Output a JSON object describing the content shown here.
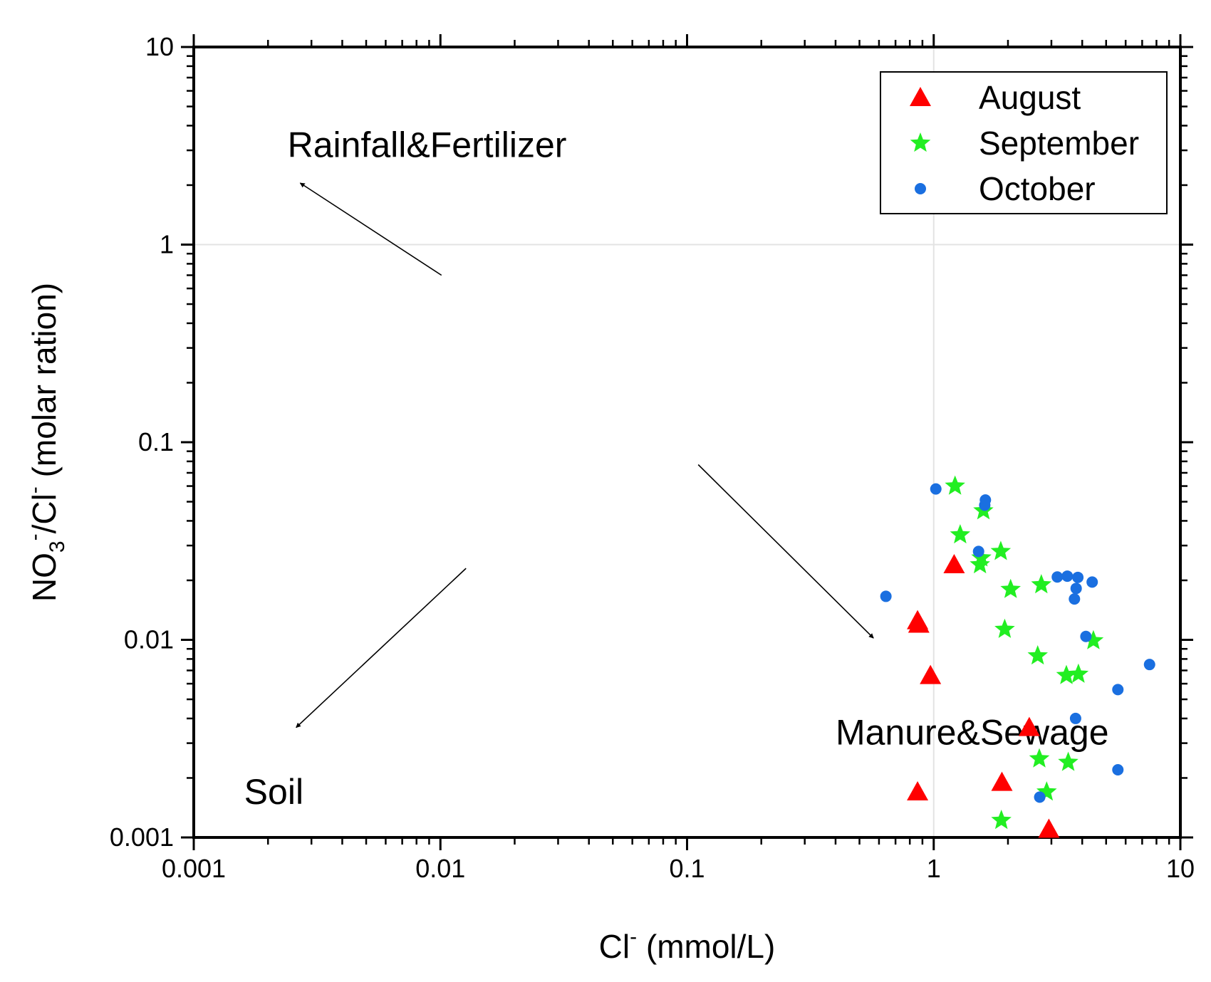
{
  "chart_data": {
    "type": "scatter",
    "xscale": "log",
    "yscale": "log",
    "xlim": [
      0.001,
      10
    ],
    "ylim": [
      0.001,
      10
    ],
    "grid": "major lines at x=1 and y=1",
    "x_ticks": [
      "0.001",
      "0.01",
      "0.1",
      "1",
      "10"
    ],
    "y_ticks": [
      "0.001",
      "0.01",
      "0.1",
      "1",
      "10"
    ],
    "xlabel": {
      "main": "Cl",
      "sup": "-",
      "rest": " (mmol/L)"
    },
    "ylabel": {
      "main": "NO",
      "sub": "3",
      "sup1": "-",
      "mid": "/Cl",
      "sup2": "-",
      "rest": " (molar ration)"
    },
    "legend_position": "top-right",
    "series": [
      {
        "name": "August",
        "marker": "triangle",
        "color": "#ff0000",
        "points": [
          [
            0.86,
            0.0125
          ],
          [
            0.87,
            0.012
          ],
          [
            0.97,
            0.0066
          ],
          [
            1.21,
            0.024
          ],
          [
            2.44,
            0.0036
          ],
          [
            1.89,
            0.0019
          ],
          [
            0.86,
            0.0017
          ],
          [
            2.93,
            0.0011
          ]
        ]
      },
      {
        "name": "September",
        "marker": "star",
        "color": "#22ee22",
        "points": [
          [
            1.22,
            0.06
          ],
          [
            1.59,
            0.045
          ],
          [
            1.28,
            0.034
          ],
          [
            1.56,
            0.026
          ],
          [
            1.54,
            0.024
          ],
          [
            1.87,
            0.028
          ],
          [
            2.05,
            0.018
          ],
          [
            2.73,
            0.019
          ],
          [
            1.94,
            0.0113
          ],
          [
            2.64,
            0.0083
          ],
          [
            4.44,
            0.0099
          ],
          [
            3.45,
            0.0066
          ],
          [
            3.86,
            0.0067
          ],
          [
            2.68,
            0.0025
          ],
          [
            3.51,
            0.0024
          ],
          [
            2.87,
            0.0017
          ],
          [
            1.88,
            0.00122
          ]
        ]
      },
      {
        "name": "October",
        "marker": "circle",
        "color": "#1a6fe0",
        "points": [
          [
            1.02,
            0.058
          ],
          [
            1.62,
            0.051
          ],
          [
            1.61,
            0.048
          ],
          [
            1.52,
            0.028
          ],
          [
            0.64,
            0.0166
          ],
          [
            3.17,
            0.0208
          ],
          [
            3.48,
            0.021
          ],
          [
            3.84,
            0.0207
          ],
          [
            4.39,
            0.0196
          ],
          [
            3.78,
            0.0182
          ],
          [
            3.72,
            0.0161
          ],
          [
            4.14,
            0.0104
          ],
          [
            7.5,
            0.0075
          ],
          [
            5.58,
            0.0056
          ],
          [
            3.76,
            0.004
          ],
          [
            5.58,
            0.0022
          ],
          [
            2.69,
            0.0016
          ]
        ]
      }
    ],
    "annotations": [
      {
        "text": "Rainfall&Fertilizer",
        "at": [
          0.0024,
          3.2
        ]
      },
      {
        "text": "Manure&Sewage",
        "at": [
          0.4,
          0.0034
        ]
      },
      {
        "text": "Soil",
        "at": [
          0.0016,
          0.0017
        ]
      }
    ],
    "arrows": [
      {
        "from": [
          0.0101,
          0.7
        ],
        "to": [
          0.0027,
          2.05
        ]
      },
      {
        "from": [
          0.111,
          0.077
        ],
        "to": [
          0.57,
          0.0102
        ]
      },
      {
        "from": [
          0.0127,
          0.023
        ],
        "to": [
          0.0026,
          0.0036
        ]
      }
    ]
  }
}
